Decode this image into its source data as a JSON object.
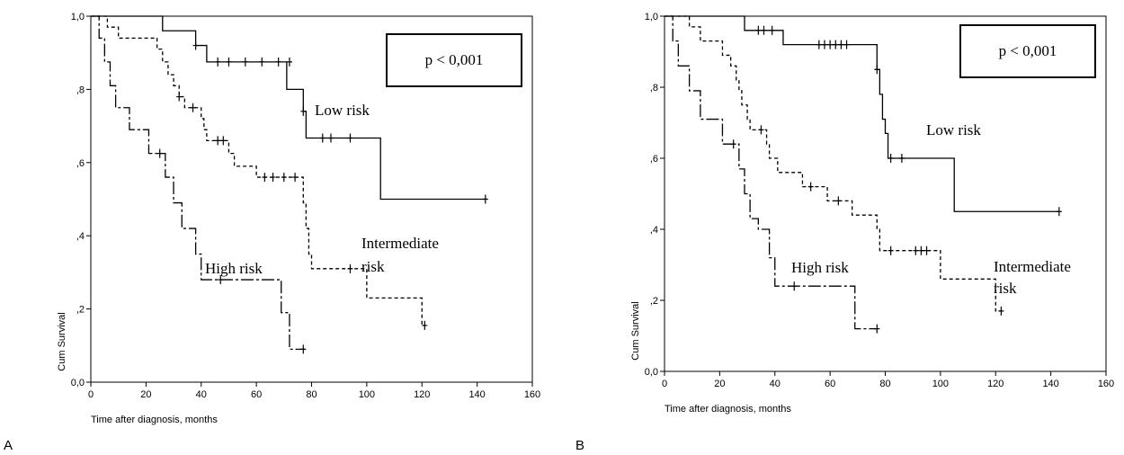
{
  "chart_data": [
    {
      "type": "step",
      "panel_label": "A",
      "x_label": "Time after diagnosis, months",
      "y_label": "Cum Survival",
      "xlim": [
        0,
        160
      ],
      "xticks": [
        0,
        20,
        40,
        60,
        80,
        100,
        120,
        140,
        160
      ],
      "ylim": [
        0,
        1
      ],
      "yticks": [
        {
          "value": 0,
          "label": "0,0"
        },
        {
          "value": 0.2,
          "label": ",2"
        },
        {
          "value": 0.4,
          "label": ",4"
        },
        {
          "value": 0.6,
          "label": ",6"
        },
        {
          "value": 0.8,
          "label": ",8"
        },
        {
          "value": 1,
          "label": "1,0"
        }
      ],
      "p_value": "p < 0,001",
      "annotations": [
        "Low risk",
        "High risk",
        "Intermediate",
        "risk"
      ],
      "series": [
        {
          "style": "solid",
          "color": "#000000",
          "x": [
            0,
            26,
            38,
            42,
            71,
            77,
            78,
            105,
            143
          ],
          "values": [
            1,
            0.96,
            0.92,
            0.875,
            0.8,
            0.74,
            0.667,
            0.5,
            0.5
          ],
          "censored_x": [
            38,
            46,
            50,
            56,
            62,
            68,
            72,
            77,
            84,
            87,
            94,
            143
          ],
          "censored_values": [
            0.92,
            0.875,
            0.875,
            0.875,
            0.875,
            0.875,
            0.875,
            0.74,
            0.667,
            0.667,
            0.667,
            0.5
          ]
        },
        {
          "style": "dashed",
          "color": "#000000",
          "x": [
            0,
            6,
            10,
            24,
            26,
            28,
            30,
            32,
            34,
            40,
            41,
            42,
            50,
            52,
            60,
            77,
            78,
            79,
            80,
            100,
            120,
            121
          ],
          "values": [
            1,
            0.97,
            0.94,
            0.91,
            0.875,
            0.84,
            0.81,
            0.78,
            0.75,
            0.72,
            0.69,
            0.66,
            0.625,
            0.59,
            0.56,
            0.49,
            0.42,
            0.35,
            0.31,
            0.23,
            0.155,
            0.155
          ],
          "censored_x": [
            32,
            37,
            46,
            48,
            63,
            66,
            70,
            74,
            94,
            121
          ],
          "censored_values": [
            0.78,
            0.75,
            0.66,
            0.66,
            0.56,
            0.56,
            0.56,
            0.56,
            0.31,
            0.155
          ]
        },
        {
          "style": "dashdot",
          "color": "#000000",
          "x": [
            0,
            3,
            5,
            7,
            9,
            14,
            21,
            27,
            30,
            33,
            38,
            40,
            69,
            72,
            77
          ],
          "values": [
            1,
            0.94,
            0.875,
            0.81,
            0.75,
            0.69,
            0.625,
            0.56,
            0.49,
            0.42,
            0.35,
            0.28,
            0.19,
            0.09,
            0.09
          ],
          "censored_x": [
            25,
            47,
            77
          ],
          "censored_values": [
            0.625,
            0.28,
            0.09
          ]
        }
      ]
    },
    {
      "type": "step",
      "panel_label": "B",
      "x_label": "Time after diagnosis, months",
      "y_label": "Cum Survival",
      "xlim": [
        0,
        160
      ],
      "xticks": [
        0,
        20,
        40,
        60,
        80,
        100,
        120,
        140,
        160
      ],
      "ylim": [
        0,
        1
      ],
      "yticks": [
        {
          "value": 0,
          "label": "0,0"
        },
        {
          "value": 0.2,
          "label": ",2"
        },
        {
          "value": 0.4,
          "label": ",4"
        },
        {
          "value": 0.6,
          "label": ",6"
        },
        {
          "value": 0.8,
          "label": ",8"
        },
        {
          "value": 1,
          "label": "1,0"
        }
      ],
      "p_value": "p < 0,001",
      "annotations": [
        "Low risk",
        "High risk",
        "Intermediate",
        "risk"
      ],
      "series": [
        {
          "style": "solid",
          "color": "#000000",
          "x": [
            0,
            29,
            43,
            77,
            78,
            79,
            80,
            81,
            105,
            143
          ],
          "values": [
            1,
            0.96,
            0.92,
            0.85,
            0.78,
            0.71,
            0.67,
            0.6,
            0.45,
            0.45
          ],
          "censored_x": [
            34,
            36,
            39,
            56,
            58,
            60,
            62,
            64,
            66,
            77,
            82,
            86,
            143
          ],
          "censored_values": [
            0.96,
            0.96,
            0.96,
            0.92,
            0.92,
            0.92,
            0.92,
            0.92,
            0.92,
            0.85,
            0.6,
            0.6,
            0.45
          ]
        },
        {
          "style": "dashed",
          "color": "#000000",
          "x": [
            0,
            9,
            13,
            21,
            24,
            26,
            27,
            28,
            30,
            31,
            37,
            38,
            41,
            50,
            59,
            68,
            77,
            78,
            100,
            120,
            122
          ],
          "values": [
            1,
            0.97,
            0.93,
            0.89,
            0.86,
            0.82,
            0.79,
            0.75,
            0.71,
            0.68,
            0.64,
            0.6,
            0.56,
            0.52,
            0.48,
            0.44,
            0.4,
            0.34,
            0.26,
            0.17,
            0.17
          ],
          "censored_x": [
            35,
            53,
            63,
            82,
            91,
            93,
            95,
            122
          ],
          "censored_values": [
            0.68,
            0.52,
            0.48,
            0.34,
            0.34,
            0.34,
            0.34,
            0.17
          ]
        },
        {
          "style": "dashdot",
          "color": "#000000",
          "x": [
            0,
            3,
            5,
            9,
            13,
            21,
            27,
            29,
            31,
            34,
            38,
            40,
            69,
            77
          ],
          "values": [
            1,
            0.93,
            0.86,
            0.79,
            0.71,
            0.64,
            0.57,
            0.5,
            0.43,
            0.4,
            0.32,
            0.24,
            0.12,
            0.12
          ],
          "censored_x": [
            25,
            47,
            77
          ],
          "censored_values": [
            0.64,
            0.24,
            0.12
          ]
        }
      ]
    }
  ]
}
